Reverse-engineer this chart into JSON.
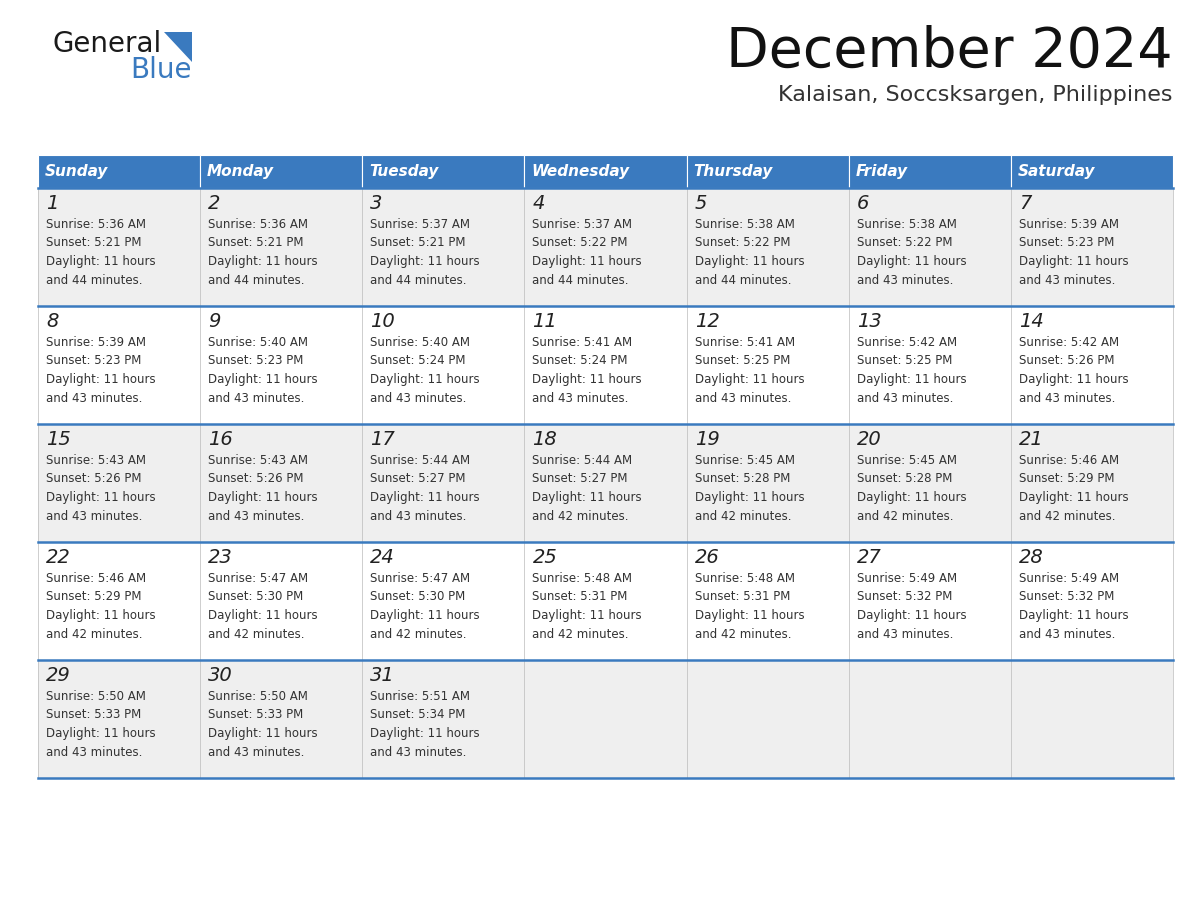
{
  "title": "December 2024",
  "subtitle": "Kalaisan, Soccsksargen, Philippines",
  "header_bg_color": "#3a7abf",
  "header_text_color": "#ffffff",
  "row_bg_even": "#efefef",
  "row_bg_odd": "#ffffff",
  "separator_color": "#3a7abf",
  "days_of_week": [
    "Sunday",
    "Monday",
    "Tuesday",
    "Wednesday",
    "Thursday",
    "Friday",
    "Saturday"
  ],
  "calendar_data": [
    [
      {
        "day": 1,
        "sunrise": "5:36 AM",
        "sunset": "5:21 PM",
        "daylight_hours": 11,
        "daylight_minutes": 44
      },
      {
        "day": 2,
        "sunrise": "5:36 AM",
        "sunset": "5:21 PM",
        "daylight_hours": 11,
        "daylight_minutes": 44
      },
      {
        "day": 3,
        "sunrise": "5:37 AM",
        "sunset": "5:21 PM",
        "daylight_hours": 11,
        "daylight_minutes": 44
      },
      {
        "day": 4,
        "sunrise": "5:37 AM",
        "sunset": "5:22 PM",
        "daylight_hours": 11,
        "daylight_minutes": 44
      },
      {
        "day": 5,
        "sunrise": "5:38 AM",
        "sunset": "5:22 PM",
        "daylight_hours": 11,
        "daylight_minutes": 44
      },
      {
        "day": 6,
        "sunrise": "5:38 AM",
        "sunset": "5:22 PM",
        "daylight_hours": 11,
        "daylight_minutes": 43
      },
      {
        "day": 7,
        "sunrise": "5:39 AM",
        "sunset": "5:23 PM",
        "daylight_hours": 11,
        "daylight_minutes": 43
      }
    ],
    [
      {
        "day": 8,
        "sunrise": "5:39 AM",
        "sunset": "5:23 PM",
        "daylight_hours": 11,
        "daylight_minutes": 43
      },
      {
        "day": 9,
        "sunrise": "5:40 AM",
        "sunset": "5:23 PM",
        "daylight_hours": 11,
        "daylight_minutes": 43
      },
      {
        "day": 10,
        "sunrise": "5:40 AM",
        "sunset": "5:24 PM",
        "daylight_hours": 11,
        "daylight_minutes": 43
      },
      {
        "day": 11,
        "sunrise": "5:41 AM",
        "sunset": "5:24 PM",
        "daylight_hours": 11,
        "daylight_minutes": 43
      },
      {
        "day": 12,
        "sunrise": "5:41 AM",
        "sunset": "5:25 PM",
        "daylight_hours": 11,
        "daylight_minutes": 43
      },
      {
        "day": 13,
        "sunrise": "5:42 AM",
        "sunset": "5:25 PM",
        "daylight_hours": 11,
        "daylight_minutes": 43
      },
      {
        "day": 14,
        "sunrise": "5:42 AM",
        "sunset": "5:26 PM",
        "daylight_hours": 11,
        "daylight_minutes": 43
      }
    ],
    [
      {
        "day": 15,
        "sunrise": "5:43 AM",
        "sunset": "5:26 PM",
        "daylight_hours": 11,
        "daylight_minutes": 43
      },
      {
        "day": 16,
        "sunrise": "5:43 AM",
        "sunset": "5:26 PM",
        "daylight_hours": 11,
        "daylight_minutes": 43
      },
      {
        "day": 17,
        "sunrise": "5:44 AM",
        "sunset": "5:27 PM",
        "daylight_hours": 11,
        "daylight_minutes": 43
      },
      {
        "day": 18,
        "sunrise": "5:44 AM",
        "sunset": "5:27 PM",
        "daylight_hours": 11,
        "daylight_minutes": 42
      },
      {
        "day": 19,
        "sunrise": "5:45 AM",
        "sunset": "5:28 PM",
        "daylight_hours": 11,
        "daylight_minutes": 42
      },
      {
        "day": 20,
        "sunrise": "5:45 AM",
        "sunset": "5:28 PM",
        "daylight_hours": 11,
        "daylight_minutes": 42
      },
      {
        "day": 21,
        "sunrise": "5:46 AM",
        "sunset": "5:29 PM",
        "daylight_hours": 11,
        "daylight_minutes": 42
      }
    ],
    [
      {
        "day": 22,
        "sunrise": "5:46 AM",
        "sunset": "5:29 PM",
        "daylight_hours": 11,
        "daylight_minutes": 42
      },
      {
        "day": 23,
        "sunrise": "5:47 AM",
        "sunset": "5:30 PM",
        "daylight_hours": 11,
        "daylight_minutes": 42
      },
      {
        "day": 24,
        "sunrise": "5:47 AM",
        "sunset": "5:30 PM",
        "daylight_hours": 11,
        "daylight_minutes": 42
      },
      {
        "day": 25,
        "sunrise": "5:48 AM",
        "sunset": "5:31 PM",
        "daylight_hours": 11,
        "daylight_minutes": 42
      },
      {
        "day": 26,
        "sunrise": "5:48 AM",
        "sunset": "5:31 PM",
        "daylight_hours": 11,
        "daylight_minutes": 42
      },
      {
        "day": 27,
        "sunrise": "5:49 AM",
        "sunset": "5:32 PM",
        "daylight_hours": 11,
        "daylight_minutes": 43
      },
      {
        "day": 28,
        "sunrise": "5:49 AM",
        "sunset": "5:32 PM",
        "daylight_hours": 11,
        "daylight_minutes": 43
      }
    ],
    [
      {
        "day": 29,
        "sunrise": "5:50 AM",
        "sunset": "5:33 PM",
        "daylight_hours": 11,
        "daylight_minutes": 43
      },
      {
        "day": 30,
        "sunrise": "5:50 AM",
        "sunset": "5:33 PM",
        "daylight_hours": 11,
        "daylight_minutes": 43
      },
      {
        "day": 31,
        "sunrise": "5:51 AM",
        "sunset": "5:34 PM",
        "daylight_hours": 11,
        "daylight_minutes": 43
      },
      null,
      null,
      null,
      null
    ]
  ],
  "logo_text1": "General",
  "logo_text2": "Blue",
  "logo_triangle_color": "#3a7abf",
  "fig_width": 11.88,
  "fig_height": 9.18,
  "dpi": 100
}
